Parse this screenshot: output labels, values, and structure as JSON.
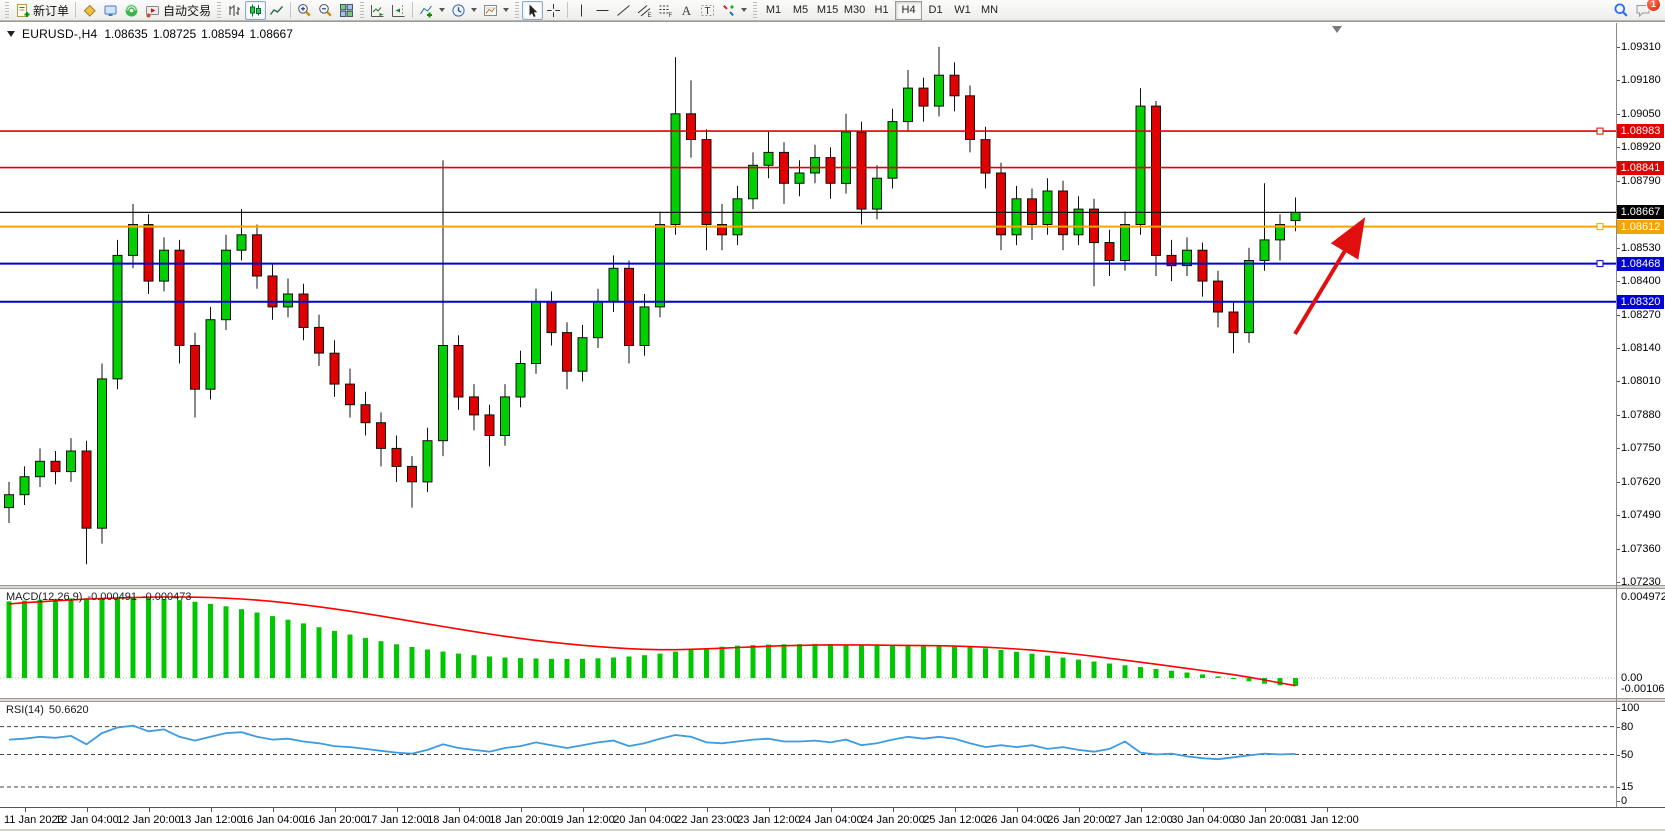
{
  "toolbar": {
    "new_order_label": "新订单",
    "autotrading_label": "自动交易",
    "timeframes": [
      "M1",
      "M5",
      "M15",
      "M30",
      "H1",
      "H4",
      "D1",
      "W1",
      "MN"
    ],
    "active_timeframe": "H4",
    "notification_badge": "1"
  },
  "chart_header": {
    "symbol_period": "EURUSD-,H4",
    "open": "1.08635",
    "high": "1.08725",
    "low": "1.08594",
    "close": "1.08667"
  },
  "price_axis": {
    "ticks": [
      "1.09310",
      "1.09180",
      "1.09050",
      "1.08920",
      "1.08790",
      "1.08530",
      "1.08400",
      "1.08270",
      "1.08140",
      "1.08010",
      "1.07880",
      "1.07750",
      "1.07620",
      "1.07490",
      "1.07360",
      "1.07230"
    ],
    "badges": [
      {
        "label": "1.08983",
        "color": "#e00000"
      },
      {
        "label": "1.08841",
        "color": "#e00000"
      },
      {
        "label": "1.08667",
        "color": "#000000"
      },
      {
        "label": "1.08612",
        "color": "#f5a300"
      },
      {
        "label": "1.08468",
        "color": "#0000d8"
      },
      {
        "label": "1.08320",
        "color": "#0000d8"
      }
    ]
  },
  "time_axis": {
    "labels": [
      "11 Jan 2023",
      "12 Jan 04:00",
      "12 Jan 20:00",
      "13 Jan 12:00",
      "16 Jan 04:00",
      "16 Jan 20:00",
      "17 Jan 12:00",
      "18 Jan 04:00",
      "18 Jan 20:00",
      "19 Jan 12:00",
      "20 Jan 04:00",
      "22 Jan 23:00",
      "23 Jan 12:00",
      "24 Jan 04:00",
      "24 Jan 20:00",
      "25 Jan 12:00",
      "26 Jan 04:00",
      "26 Jan 20:00",
      "27 Jan 12:00",
      "30 Jan 04:00",
      "30 Jan 20:00",
      "31 Jan 12:00"
    ]
  },
  "indicators": {
    "macd_name": "MACD(12,26,9)",
    "macd_main_value": "-0.000491",
    "macd_signal_value": "-0.000473",
    "macd_scale_max": "0.004972",
    "macd_zero": "0.00",
    "macd_scale_min": "-0.001063",
    "rsi_name": "RSI(14)",
    "rsi_value": "50.6620",
    "rsi_scale": [
      "100",
      "80",
      "50",
      "15",
      "0"
    ]
  },
  "colors": {
    "bull": "#00cf00",
    "bear": "#e00000",
    "wick": "#111111",
    "macd_hist": "#00c800",
    "macd_signal": "#ff0000",
    "rsi_line": "#3d9be0",
    "arrow": "#e01010",
    "badge_red": "#e00000",
    "badge_orange": "#f5a300",
    "badge_blue": "#0000d8",
    "badge_black": "#000000"
  },
  "chart_data": [
    {
      "type": "candlestick",
      "title": "EURUSD-,H4",
      "current_bar": {
        "open": 1.08635,
        "high": 1.08725,
        "low": 1.08594,
        "close": 1.08667
      },
      "ylim": [
        1.07224,
        1.09403
      ],
      "x_labels": [
        "11 Jan 2023",
        "12 Jan 04:00",
        "12 Jan 20:00",
        "13 Jan 12:00",
        "16 Jan 04:00",
        "16 Jan 20:00",
        "17 Jan 12:00",
        "18 Jan 04:00",
        "18 Jan 20:00",
        "19 Jan 12:00",
        "20 Jan 04:00",
        "22 Jan 23:00",
        "23 Jan 12:00",
        "24 Jan 04:00",
        "24 Jan 20:00",
        "25 Jan 12:00",
        "26 Jan 04:00",
        "26 Jan 20:00",
        "27 Jan 12:00",
        "30 Jan 04:00",
        "30 Jan 20:00",
        "31 Jan 12:00"
      ],
      "hlines": [
        {
          "price": 1.08983,
          "color": "#e00000",
          "width": 1.6,
          "marker": true
        },
        {
          "price": 1.08841,
          "color": "#e00000",
          "width": 1.6,
          "marker": false
        },
        {
          "price": 1.08667,
          "color": "#151515",
          "width": 1.2,
          "marker": false
        },
        {
          "price": 1.08612,
          "color": "#f5a300",
          "width": 2,
          "marker": true
        },
        {
          "price": 1.08468,
          "color": "#0000d8",
          "width": 2,
          "marker": true
        },
        {
          "price": 1.0832,
          "color": "#0000d8",
          "width": 2,
          "marker": false
        }
      ],
      "annotation_arrow": {
        "from": [
          1295,
          311
        ],
        "to": [
          1361,
          201
        ],
        "color": "#e01010"
      },
      "candles": [
        [
          1.0752,
          1.0762,
          1.0746,
          1.0757
        ],
        [
          1.0757,
          1.0768,
          1.0753,
          1.0764
        ],
        [
          1.0764,
          1.0775,
          1.076,
          1.077
        ],
        [
          1.077,
          1.0774,
          1.0761,
          1.0766
        ],
        [
          1.0766,
          1.0779,
          1.0762,
          1.0774
        ],
        [
          1.0774,
          1.0778,
          1.073,
          1.0744
        ],
        [
          1.0744,
          1.0808,
          1.0738,
          1.0802
        ],
        [
          1.0802,
          1.0856,
          1.0798,
          1.085
        ],
        [
          1.085,
          1.087,
          1.0845,
          1.0862
        ],
        [
          1.0862,
          1.0866,
          1.0835,
          1.084
        ],
        [
          1.084,
          1.0857,
          1.0836,
          1.0852
        ],
        [
          1.0852,
          1.0856,
          1.0808,
          1.0815
        ],
        [
          1.0815,
          1.082,
          1.0787,
          1.0798
        ],
        [
          1.0798,
          1.083,
          1.0794,
          1.0825
        ],
        [
          1.0825,
          1.0858,
          1.0821,
          1.0852
        ],
        [
          1.0852,
          1.0868,
          1.0848,
          1.0858
        ],
        [
          1.0858,
          1.0862,
          1.0837,
          1.0842
        ],
        [
          1.0842,
          1.0847,
          1.0825,
          1.083
        ],
        [
          1.083,
          1.0841,
          1.0826,
          1.0835
        ],
        [
          1.0835,
          1.0839,
          1.0817,
          1.0822
        ],
        [
          1.0822,
          1.0827,
          1.0807,
          1.0812
        ],
        [
          1.0812,
          1.0817,
          1.0795,
          1.08
        ],
        [
          1.08,
          1.0806,
          1.0787,
          1.0792
        ],
        [
          1.0792,
          1.0797,
          1.078,
          1.0785
        ],
        [
          1.0785,
          1.0789,
          1.0768,
          1.0775
        ],
        [
          1.0775,
          1.078,
          1.0762,
          1.0768
        ],
        [
          1.0768,
          1.0772,
          1.0752,
          1.0762
        ],
        [
          1.0762,
          1.0783,
          1.0758,
          1.0778
        ],
        [
          1.0778,
          1.0887,
          1.0772,
          1.0815
        ],
        [
          1.0815,
          1.0819,
          1.079,
          1.0795
        ],
        [
          1.0795,
          1.08,
          1.0782,
          1.0788
        ],
        [
          1.0788,
          1.0792,
          1.0768,
          1.078
        ],
        [
          1.078,
          1.08,
          1.0776,
          1.0795
        ],
        [
          1.0795,
          1.0813,
          1.0791,
          1.0808
        ],
        [
          1.0808,
          1.0837,
          1.0804,
          1.0832
        ],
        [
          1.0832,
          1.0836,
          1.0815,
          1.082
        ],
        [
          1.082,
          1.0824,
          1.0798,
          1.0805
        ],
        [
          1.0805,
          1.0823,
          1.0801,
          1.0818
        ],
        [
          1.0818,
          1.0837,
          1.0814,
          1.0832
        ],
        [
          1.0832,
          1.085,
          1.0828,
          1.0845
        ],
        [
          1.0845,
          1.0848,
          1.0808,
          1.0815
        ],
        [
          1.0815,
          1.0835,
          1.0811,
          1.083
        ],
        [
          1.083,
          1.0867,
          1.0826,
          1.0862
        ],
        [
          1.0862,
          1.0927,
          1.0858,
          1.0905
        ],
        [
          1.0905,
          1.0918,
          1.0888,
          1.0895
        ],
        [
          1.0895,
          1.0899,
          1.0852,
          1.0862
        ],
        [
          1.0862,
          1.087,
          1.0852,
          1.0858
        ],
        [
          1.0858,
          1.0877,
          1.0854,
          1.0872
        ],
        [
          1.0872,
          1.089,
          1.0868,
          1.0885
        ],
        [
          1.0885,
          1.0898,
          1.088,
          1.089
        ],
        [
          1.089,
          1.0894,
          1.087,
          1.0878
        ],
        [
          1.0878,
          1.0887,
          1.0873,
          1.0882
        ],
        [
          1.0882,
          1.0893,
          1.0878,
          1.0888
        ],
        [
          1.0888,
          1.0892,
          1.0872,
          1.0878
        ],
        [
          1.0878,
          1.0905,
          1.0874,
          1.0898
        ],
        [
          1.0898,
          1.0902,
          1.0862,
          1.0868
        ],
        [
          1.0868,
          1.0885,
          1.0864,
          1.088
        ],
        [
          1.088,
          1.0907,
          1.0876,
          1.0902
        ],
        [
          1.0902,
          1.0922,
          1.0898,
          1.0915
        ],
        [
          1.0915,
          1.0919,
          1.0902,
          1.0908
        ],
        [
          1.0908,
          1.0931,
          1.0904,
          1.092
        ],
        [
          1.092,
          1.0925,
          1.0906,
          1.0912
        ],
        [
          1.0912,
          1.0916,
          1.089,
          1.0895
        ],
        [
          1.0895,
          1.09,
          1.0876,
          1.0882
        ],
        [
          1.0882,
          1.0886,
          1.0852,
          1.0858
        ],
        [
          1.0858,
          1.0877,
          1.0854,
          1.0872
        ],
        [
          1.0872,
          1.0876,
          1.0856,
          1.0862
        ],
        [
          1.0862,
          1.088,
          1.0858,
          1.0875
        ],
        [
          1.0875,
          1.0879,
          1.0852,
          1.0858
        ],
        [
          1.0858,
          1.0873,
          1.0854,
          1.0868
        ],
        [
          1.0868,
          1.0872,
          1.0838,
          1.0855
        ],
        [
          1.0855,
          1.086,
          1.0842,
          1.0848
        ],
        [
          1.0848,
          1.0867,
          1.0844,
          1.0862
        ],
        [
          1.0862,
          1.0915,
          1.0858,
          1.0908
        ],
        [
          1.0908,
          1.091,
          1.0842,
          1.085
        ],
        [
          1.085,
          1.0856,
          1.084,
          1.0846
        ],
        [
          1.0846,
          1.0857,
          1.0842,
          1.0852
        ],
        [
          1.0852,
          1.0855,
          1.0834,
          1.084
        ],
        [
          1.084,
          1.0844,
          1.0822,
          1.0828
        ],
        [
          1.0828,
          1.0832,
          1.0812,
          1.082
        ],
        [
          1.082,
          1.0853,
          1.0816,
          1.0848
        ],
        [
          1.0848,
          1.0878,
          1.0844,
          1.0856
        ],
        [
          1.0856,
          1.0866,
          1.0848,
          1.0862
        ],
        [
          1.08635,
          1.08725,
          1.08594,
          1.08667
        ]
      ]
    },
    {
      "type": "bar",
      "name": "MACD(12,26,9)",
      "params": [
        12,
        26,
        9
      ],
      "ylim": [
        -0.001063,
        0.004972
      ],
      "current_main": -0.000491,
      "current_signal": -0.000473,
      "histogram_x1000": [
        4.7,
        4.75,
        4.8,
        4.85,
        4.88,
        4.9,
        4.92,
        4.93,
        4.92,
        4.9,
        4.85,
        4.78,
        4.68,
        4.55,
        4.4,
        4.22,
        4.02,
        3.8,
        3.58,
        3.35,
        3.12,
        2.89,
        2.67,
        2.46,
        2.26,
        2.07,
        1.9,
        1.75,
        1.62,
        1.5,
        1.4,
        1.32,
        1.26,
        1.22,
        1.2,
        1.18,
        1.17,
        1.18,
        1.21,
        1.26,
        1.32,
        1.4,
        1.5,
        1.62,
        1.74,
        1.84,
        1.92,
        1.98,
        2.02,
        2.05,
        2.07,
        2.08,
        2.09,
        2.08,
        2.07,
        2.05,
        2.03,
        2.01,
        2.0,
        1.99,
        1.98,
        1.95,
        1.9,
        1.82,
        1.72,
        1.61,
        1.49,
        1.37,
        1.25,
        1.13,
        1.01,
        0.89,
        0.78,
        0.67,
        0.56,
        0.45,
        0.34,
        0.22,
        0.1,
        -0.05,
        -0.2,
        -0.35,
        -0.45,
        -0.491
      ],
      "signal_x1000": [
        4.55,
        4.62,
        4.68,
        4.74,
        4.79,
        4.84,
        4.88,
        4.91,
        4.94,
        4.96,
        4.97,
        4.97,
        4.96,
        4.94,
        4.9,
        4.85,
        4.78,
        4.7,
        4.6,
        4.49,
        4.37,
        4.24,
        4.1,
        3.95,
        3.8,
        3.64,
        3.48,
        3.32,
        3.16,
        3.0,
        2.85,
        2.7,
        2.56,
        2.43,
        2.31,
        2.2,
        2.1,
        2.01,
        1.93,
        1.86,
        1.8,
        1.76,
        1.74,
        1.74,
        1.76,
        1.79,
        1.83,
        1.87,
        1.91,
        1.95,
        1.98,
        2.0,
        2.02,
        2.03,
        2.03,
        2.03,
        2.02,
        2.01,
        2.0,
        1.99,
        1.98,
        1.96,
        1.93,
        1.89,
        1.84,
        1.78,
        1.71,
        1.63,
        1.54,
        1.44,
        1.33,
        1.21,
        1.09,
        0.97,
        0.85,
        0.72,
        0.59,
        0.46,
        0.33,
        0.2,
        0.05,
        -0.12,
        -0.3,
        -0.473
      ]
    },
    {
      "type": "line",
      "name": "RSI(14)",
      "ylim": [
        0,
        100
      ],
      "levels": [
        80,
        50,
        15
      ],
      "current": 50.662,
      "values": [
        66,
        67,
        69,
        68,
        70,
        61,
        73,
        79,
        81,
        75,
        77,
        69,
        65,
        69,
        73,
        74,
        69,
        66,
        67,
        64,
        62,
        59,
        58,
        56,
        54,
        52,
        51,
        55,
        61,
        57,
        55,
        53,
        57,
        59,
        63,
        60,
        57,
        60,
        63,
        65,
        59,
        62,
        67,
        71,
        69,
        63,
        62,
        64,
        66,
        67,
        64,
        64,
        65,
        63,
        66,
        60,
        62,
        66,
        69,
        67,
        69,
        67,
        62,
        58,
        60,
        58,
        60,
        56,
        58,
        55,
        53,
        56,
        64,
        52,
        50,
        51,
        48,
        46,
        45,
        47,
        49,
        51,
        50,
        50.662
      ]
    }
  ]
}
